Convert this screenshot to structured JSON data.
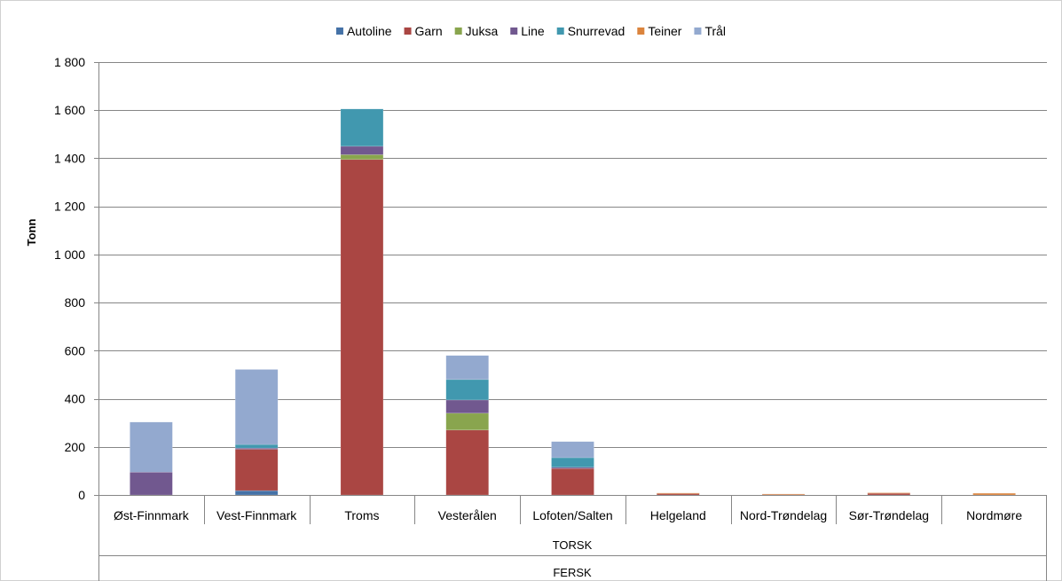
{
  "chart_data": {
    "type": "bar",
    "stacked": true,
    "title": "",
    "xlabel": "",
    "ylabel": "Tonn",
    "ylim": [
      0,
      1800
    ],
    "yticks": [
      0,
      200,
      400,
      600,
      800,
      1000,
      1200,
      1400,
      1600,
      1800
    ],
    "ytick_labels": [
      "0",
      "200",
      "400",
      "600",
      "800",
      "1 000",
      "1 200",
      "1 400",
      "1 600",
      "1 800"
    ],
    "grid": true,
    "legend_position": "top",
    "categories": [
      "Øst-Finnmark",
      "Vest-Finnmark",
      "Troms",
      "Vesterålen",
      "Lofoten/Salten",
      "Helgeland",
      "Nord-Trøndelag",
      "Sør-Trøndelag",
      "Nordmøre"
    ],
    "group_labels": [
      "TORSK",
      "FERSK"
    ],
    "series": [
      {
        "name": "Autoline",
        "color": "#4572A7",
        "values": [
          0,
          18,
          0,
          0,
          0,
          0,
          0,
          0,
          0
        ]
      },
      {
        "name": "Garn",
        "color": "#AA4643",
        "values": [
          0,
          172,
          1395,
          270,
          110,
          6,
          3,
          8,
          0
        ]
      },
      {
        "name": "Juksa",
        "color": "#89A54E",
        "values": [
          0,
          0,
          20,
          70,
          0,
          0,
          0,
          0,
          0
        ]
      },
      {
        "name": "Line",
        "color": "#71588F",
        "values": [
          95,
          5,
          35,
          55,
          5,
          0,
          0,
          0,
          0
        ]
      },
      {
        "name": "Snurrevad",
        "color": "#4198AF",
        "values": [
          0,
          15,
          155,
          85,
          40,
          0,
          0,
          0,
          0
        ]
      },
      {
        "name": "Teiner",
        "color": "#DB843D",
        "values": [
          0,
          0,
          0,
          0,
          0,
          2,
          1,
          1,
          7
        ]
      },
      {
        "name": "Trål",
        "color": "#93A9CF",
        "values": [
          208,
          312,
          0,
          100,
          67,
          0,
          0,
          0,
          0
        ]
      }
    ]
  }
}
